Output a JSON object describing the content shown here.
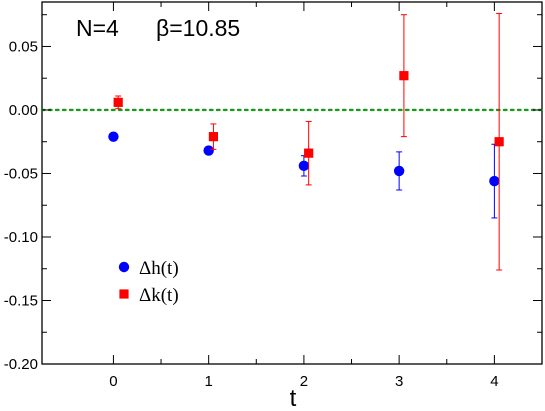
{
  "chart_data": {
    "type": "scatter",
    "title_left": "N=4",
    "title_right": "β=10.85",
    "xlabel": "t",
    "ylabel": "",
    "xlim": [
      -0.75,
      4.5
    ],
    "ylim": [
      -0.2,
      0.085
    ],
    "xticks": [
      0,
      1,
      2,
      3,
      4
    ],
    "xtick_labels": [
      "0",
      "1",
      "2",
      "3",
      "4"
    ],
    "yticks": [
      -0.2,
      -0.15,
      -0.1,
      -0.05,
      0.0,
      0.05
    ],
    "ytick_labels": [
      "-0.20",
      "-0.15",
      "-0.10",
      "-0.05",
      "0.00",
      "0.05"
    ],
    "grid": false,
    "legend_position": "lower-left",
    "reference_line": {
      "y": 0.0,
      "style": "dotted",
      "color": "#1a9a1a"
    },
    "series": [
      {
        "name": "Δh(t)",
        "marker": "circle",
        "color": "#0000ff",
        "x": [
          0,
          1,
          2,
          3,
          4
        ],
        "y": [
          -0.021,
          -0.032,
          -0.044,
          -0.048,
          -0.056
        ],
        "err": [
          0.0,
          0.003,
          0.008,
          0.015,
          0.029
        ]
      },
      {
        "name": "Δk(t)",
        "marker": "square",
        "color": "#ff0000",
        "x": [
          0.05,
          1.05,
          2.05,
          3.05,
          4.05
        ],
        "y": [
          0.006,
          -0.021,
          -0.034,
          0.027,
          -0.025
        ],
        "err": [
          0.005,
          0.01,
          0.025,
          0.048,
          0.101
        ]
      }
    ]
  }
}
